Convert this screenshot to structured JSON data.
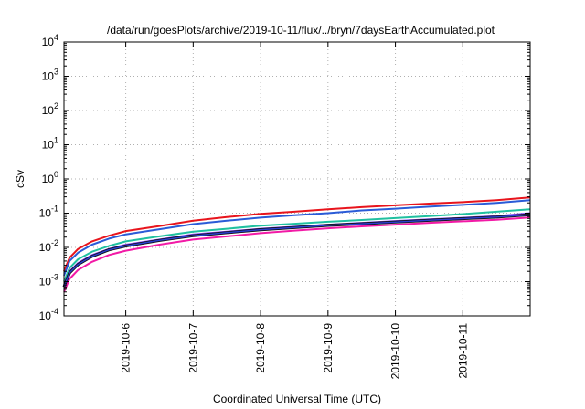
{
  "chart_data": {
    "type": "line",
    "title": "/data/run/goesPlots/archive/2019-10-11/flux/../bryn/7daysEarthAccumulated.plot",
    "xlabel": "Coordinated Universal Time (UTC)",
    "ylabel": "cSv",
    "x_type": "date",
    "xlim": [
      "2019-10-05T02:00",
      "2019-10-11T23:59"
    ],
    "ylim": [
      0.0001,
      10000
    ],
    "yscale": "log",
    "grid": true,
    "x_ticks": [
      {
        "value": "2019-10-06T00:00",
        "label": "2019-10-6"
      },
      {
        "value": "2019-10-07T00:00",
        "label": "2019-10-7"
      },
      {
        "value": "2019-10-08T00:00",
        "label": "2019-10-8"
      },
      {
        "value": "2019-10-09T00:00",
        "label": "2019-10-9"
      },
      {
        "value": "2019-10-10T00:00",
        "label": "2019-10-10"
      },
      {
        "value": "2019-10-11T00:00",
        "label": "2019-10-11"
      }
    ],
    "y_ticks": [
      {
        "value": 0.0001,
        "base": "10",
        "exp": "-4"
      },
      {
        "value": 0.001,
        "base": "10",
        "exp": "-3"
      },
      {
        "value": 0.01,
        "base": "10",
        "exp": "-2"
      },
      {
        "value": 0.1,
        "base": "10",
        "exp": "-1"
      },
      {
        "value": 1,
        "base": "10",
        "exp": "0"
      },
      {
        "value": 10,
        "base": "10",
        "exp": "1"
      },
      {
        "value": 100,
        "base": "10",
        "exp": "2"
      },
      {
        "value": 1000,
        "base": "10",
        "exp": "3"
      },
      {
        "value": 10000,
        "base": "10",
        "exp": "4"
      }
    ],
    "x": [
      "2019-10-05T02:00",
      "2019-10-05T04:00",
      "2019-10-05T07:00",
      "2019-10-05T12:00",
      "2019-10-05T18:00",
      "2019-10-06T00:00",
      "2019-10-06T12:00",
      "2019-10-07T00:00",
      "2019-10-07T12:00",
      "2019-10-08T00:00",
      "2019-10-08T12:00",
      "2019-10-09T00:00",
      "2019-10-09T12:00",
      "2019-10-10T00:00",
      "2019-10-10T12:00",
      "2019-10-11T00:00",
      "2019-10-11T12:00",
      "2019-10-11T23:59"
    ],
    "series": [
      {
        "color": "#e8141c",
        "width": 2,
        "values": [
          0.002,
          0.005,
          0.009,
          0.015,
          0.022,
          0.03,
          0.042,
          0.06,
          0.077,
          0.095,
          0.11,
          0.13,
          0.15,
          0.17,
          0.19,
          0.21,
          0.24,
          0.29
        ]
      },
      {
        "color": "#2a5bd7",
        "width": 2,
        "values": [
          0.0015,
          0.004,
          0.007,
          0.012,
          0.018,
          0.024,
          0.034,
          0.048,
          0.06,
          0.074,
          0.087,
          0.1,
          0.12,
          0.135,
          0.155,
          0.175,
          0.2,
          0.24
        ]
      },
      {
        "color": "#20c0a0",
        "width": 2,
        "values": [
          0.001,
          0.0025,
          0.0045,
          0.0075,
          0.011,
          0.015,
          0.021,
          0.029,
          0.035,
          0.043,
          0.049,
          0.056,
          0.063,
          0.072,
          0.082,
          0.094,
          0.11,
          0.13
        ]
      },
      {
        "color": "#8a44ff",
        "width": 2,
        "values": [
          0.0008,
          0.002,
          0.0035,
          0.006,
          0.009,
          0.012,
          0.017,
          0.024,
          0.029,
          0.035,
          0.04,
          0.046,
          0.052,
          0.059,
          0.066,
          0.073,
          0.082,
          0.1
        ]
      },
      {
        "color": "#101010",
        "width": 3.2,
        "values": [
          0.0007,
          0.0018,
          0.0032,
          0.0055,
          0.0085,
          0.011,
          0.016,
          0.022,
          0.027,
          0.033,
          0.038,
          0.044,
          0.049,
          0.055,
          0.062,
          0.069,
          0.077,
          0.09
        ]
      },
      {
        "color": "#2a3fd0",
        "width": 1.5,
        "values": [
          0.0007,
          0.0018,
          0.0032,
          0.0055,
          0.0085,
          0.011,
          0.016,
          0.022,
          0.027,
          0.033,
          0.038,
          0.044,
          0.049,
          0.055,
          0.062,
          0.069,
          0.077,
          0.09
        ]
      },
      {
        "color": "#f21aa6",
        "width": 2,
        "values": [
          0.0005,
          0.0012,
          0.0022,
          0.0038,
          0.006,
          0.008,
          0.012,
          0.017,
          0.021,
          0.026,
          0.031,
          0.036,
          0.041,
          0.046,
          0.052,
          0.058,
          0.064,
          0.075
        ]
      }
    ]
  }
}
